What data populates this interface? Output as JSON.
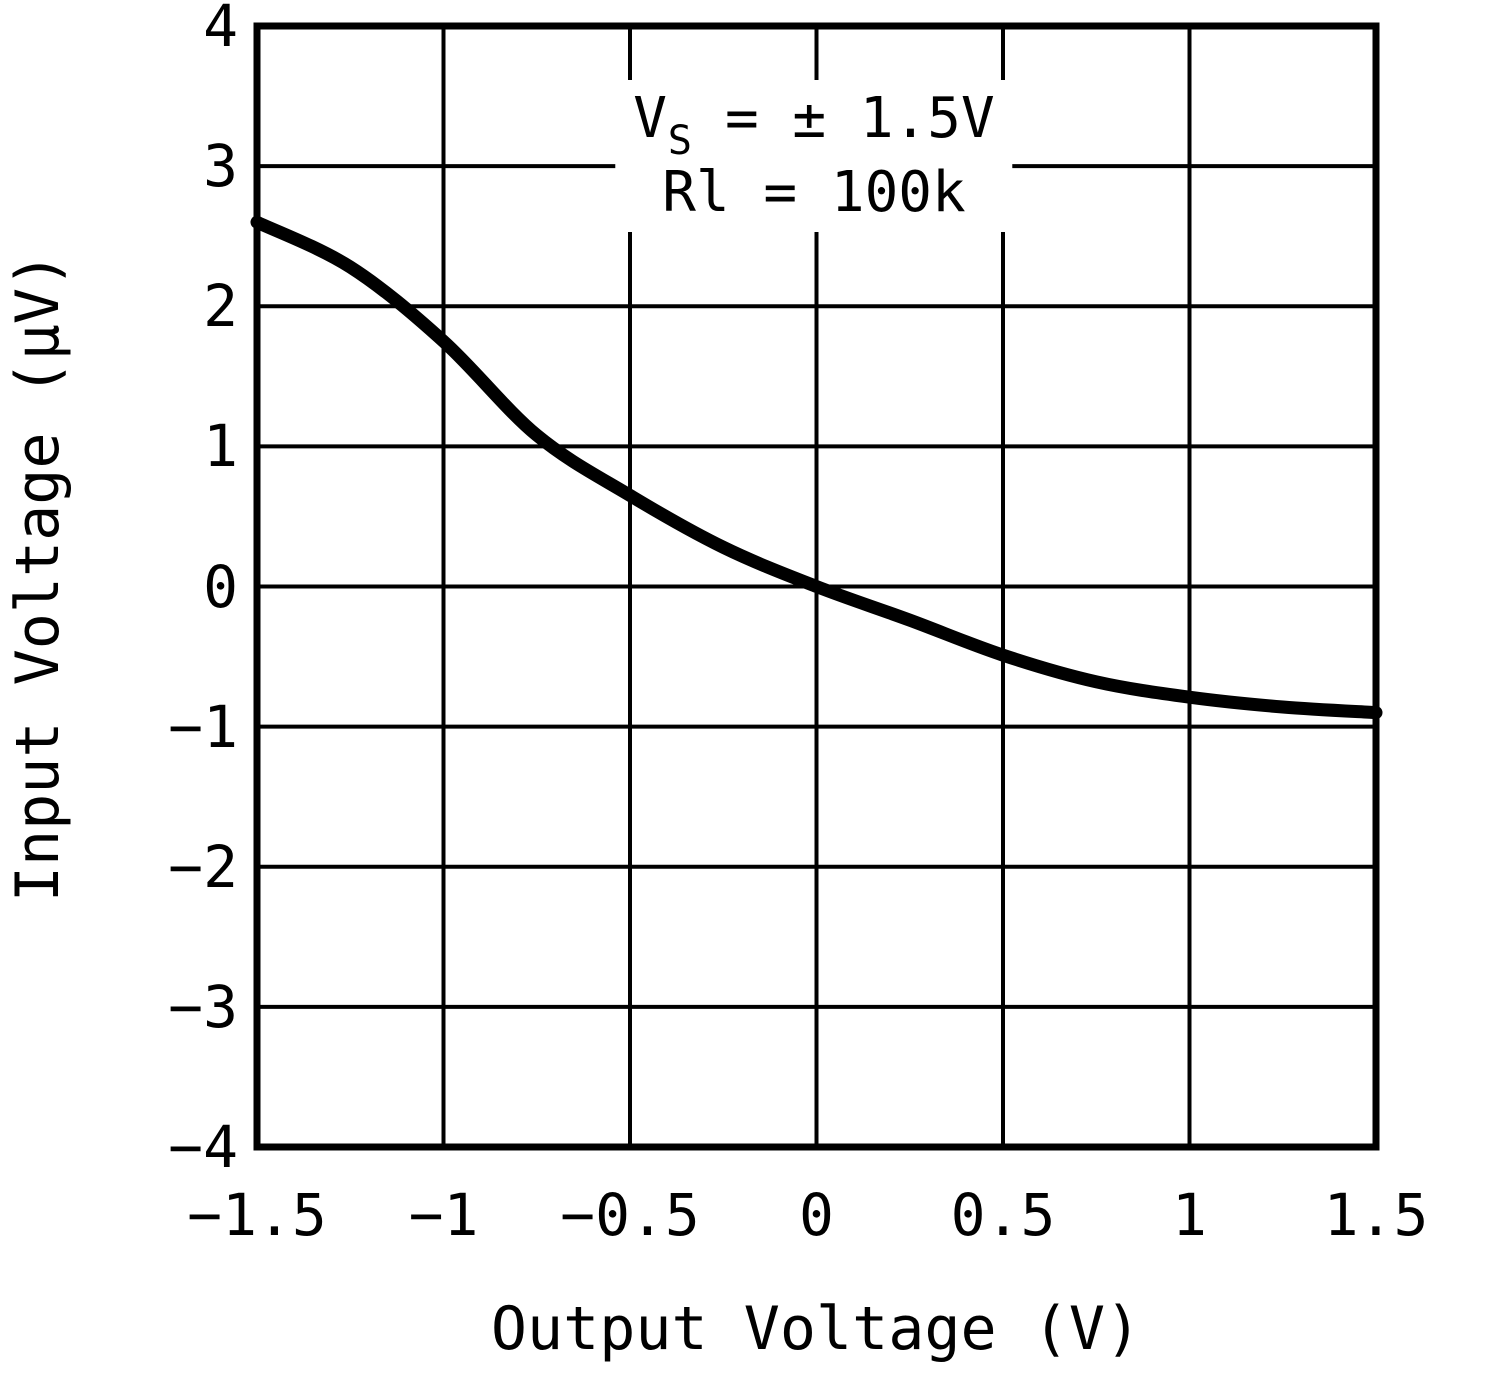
{
  "figure": {
    "annotation": {
      "line1_base": "V",
      "line1_sub": "S",
      "line1_rest": " = ± 1.5V",
      "line2": "Rl = 100k"
    }
  },
  "chart_data": {
    "type": "line",
    "title": "",
    "xlabel": "Output Voltage (V)",
    "ylabel": "Input Voltage (μV)",
    "xlim": [
      -1.5,
      1.5
    ],
    "ylim": [
      -4,
      4
    ],
    "grid": true,
    "legend": "none",
    "x_ticks": [
      -1.5,
      -1,
      -0.5,
      0,
      0.5,
      1,
      1.5
    ],
    "x_tick_labels": [
      "−1.5",
      "−1",
      "−0.5",
      "0",
      "0.5",
      "1",
      "1.5"
    ],
    "y_ticks": [
      4,
      3,
      2,
      1,
      0,
      -1,
      -2,
      -3,
      -4
    ],
    "y_tick_labels": [
      "4",
      "3",
      "2",
      "1",
      "0",
      "−1",
      "−2",
      "−3",
      "−4"
    ],
    "annotations": [
      "Vs = ± 1.5V",
      "Rl = 100k"
    ],
    "series": [
      {
        "name": "input-voltage-vs-output-voltage",
        "x": [
          -1.5,
          -1.25,
          -1.0,
          -0.75,
          -0.5,
          -0.25,
          0,
          0.25,
          0.5,
          0.75,
          1.0,
          1.25,
          1.5
        ],
        "y": [
          2.6,
          2.28,
          1.75,
          1.08,
          0.65,
          0.28,
          0.0,
          -0.24,
          -0.49,
          -0.68,
          -0.79,
          -0.86,
          -0.9
        ]
      }
    ],
    "colors": {
      "line": "#000000",
      "grid": "#000000",
      "text": "#000000",
      "background": "#ffffff"
    }
  }
}
